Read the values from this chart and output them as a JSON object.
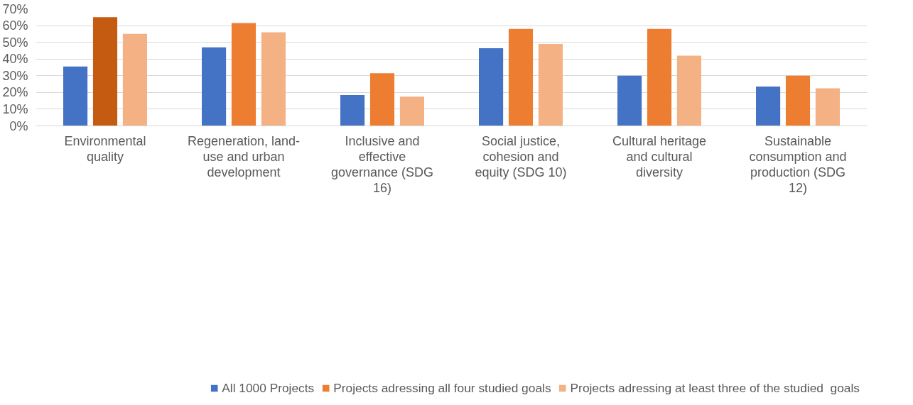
{
  "chart_data": {
    "type": "bar",
    "categories": [
      "Environmental\nquality",
      "Regeneration, land-\nuse and urban\ndevelopment",
      "Inclusive and\neffective\ngovernance (SDG\n16)",
      "Social justice,\ncohesion and\nequity (SDG 10)",
      "Cultural heritage\nand cultural\ndiversity",
      "Sustainable\nconsumption and\nproduction (SDG\n12)"
    ],
    "series": [
      {
        "name": "All 1000 Projects",
        "color": "#4472c4",
        "values": [
          35.5,
          47,
          18.5,
          46.5,
          30,
          23.5
        ]
      },
      {
        "name": "Projects adressing all four studied goals",
        "color": "#ed7d31",
        "colors": [
          "#c55a11",
          null,
          null,
          null,
          null,
          null
        ],
        "values": [
          65,
          61.5,
          31.5,
          58,
          58,
          30
        ]
      },
      {
        "name": "Projects adressing at least three of the studied  goals",
        "color": "#f4b183",
        "values": [
          55,
          56,
          17.5,
          49,
          42,
          22.5
        ]
      }
    ],
    "ylim": [
      0,
      70
    ],
    "yticks": [
      {
        "value": 0,
        "label": "0%"
      },
      {
        "value": 10,
        "label": "10%"
      },
      {
        "value": 20,
        "label": "20%"
      },
      {
        "value": 30,
        "label": "30%"
      },
      {
        "value": 40,
        "label": "40%"
      },
      {
        "value": 50,
        "label": "50%"
      },
      {
        "value": 60,
        "label": "60%"
      },
      {
        "value": 70,
        "label": "70%"
      }
    ],
    "grid": "y",
    "legend": "bottom"
  }
}
